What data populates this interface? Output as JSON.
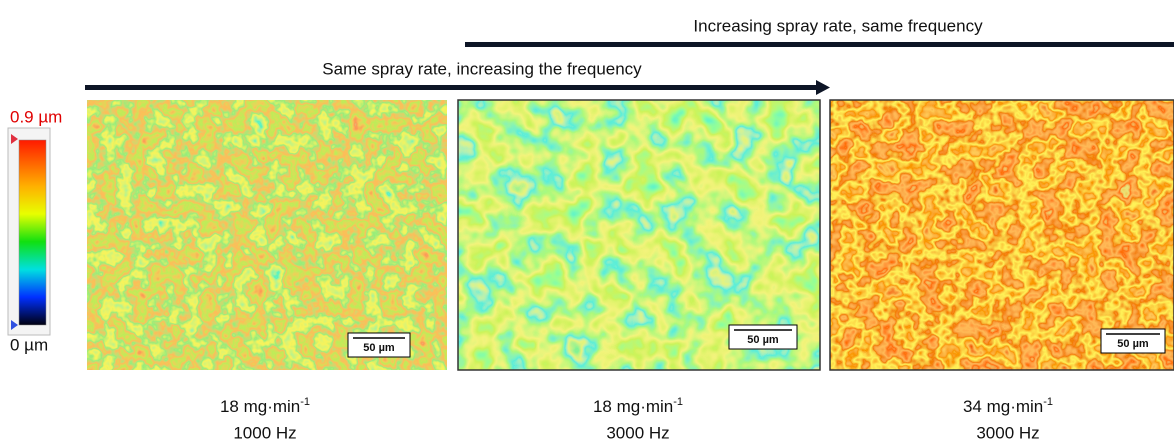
{
  "arrows": {
    "top": "Increasing spray rate, same frequency",
    "middle": "Same spray rate, increasing the frequency"
  },
  "colorbar": {
    "max": "0.9 µm",
    "min": "0 µm"
  },
  "panels": [
    {
      "scale_bar": "50 µm",
      "rate": "18 mg·min",
      "rate_exponent": "-1",
      "frequency": "1000 Hz"
    },
    {
      "scale_bar": "50 µm",
      "rate": "18 mg·min",
      "rate_exponent": "-1",
      "frequency": "3000 Hz"
    },
    {
      "scale_bar": "50 µm",
      "rate": "34 mg·min",
      "rate_exponent": "-1",
      "frequency": "3000 Hz"
    }
  ]
}
